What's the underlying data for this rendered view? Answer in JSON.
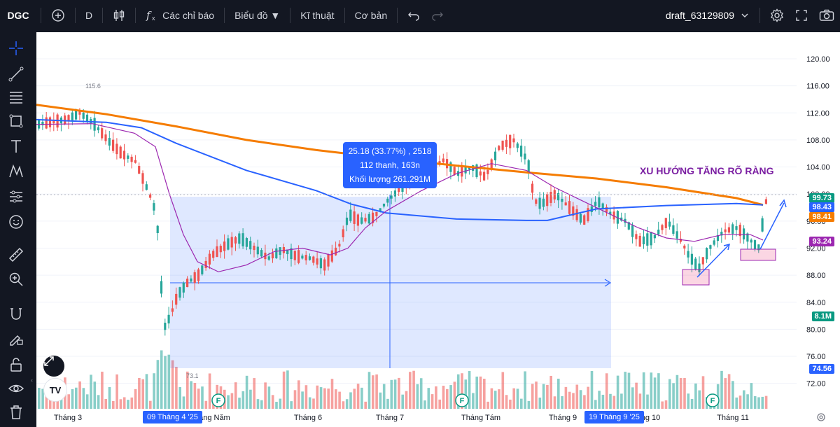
{
  "topbar": {
    "symbol": "DGC",
    "interval": "D",
    "indicators_label": "Các chỉ báo",
    "chart_label": "Biểu đồ ▼",
    "technical_label": "Kĩ thuật",
    "fundamental_label": "Cơ bản",
    "layout_name": "draft_63129809"
  },
  "tooltip": {
    "line1": "25.18 (33.77%) , 2518",
    "line2": "112 thanh, 163n",
    "line3": "Khối lượng 261.291M"
  },
  "annotation": "XU HƯỚNG TĂNG RÕ RÀNG",
  "high_label": "115.6",
  "low_label": "73.1",
  "price_axis": [
    "120.00",
    "116.00",
    "112.00",
    "108.00",
    "104.00",
    "100.00",
    "96.00",
    "92.00",
    "88.00",
    "84.00",
    "80.00",
    "76.00",
    "72.00"
  ],
  "price_tags": [
    {
      "label": "99.73",
      "color": "#089981"
    },
    {
      "label": "98.43",
      "color": "#2962ff"
    },
    {
      "label": "98.41",
      "color": "#f57c00"
    },
    {
      "label": "93.24",
      "color": "#9c27b0"
    },
    {
      "label": "8.1M",
      "color": "#089981"
    },
    {
      "label": "74.56",
      "color": "#2962ff"
    }
  ],
  "time_axis": [
    "Tháng 3",
    "Tháng Năm",
    "Tháng 6",
    "Tháng 7",
    "Tháng Tám",
    "Tháng 9",
    "Tháng 10",
    "Tháng 11"
  ],
  "date_pills": [
    "09 Tháng 4 '25",
    "19 Tháng 9 '25"
  ],
  "event_marker": "F",
  "colors": {
    "up": "#26a69a",
    "down": "#ef5350",
    "ma_orange": "#f57c00",
    "ma_blue": "#2962ff",
    "ma_purple": "#9c27b0",
    "range_fill": "#2962ff"
  }
}
